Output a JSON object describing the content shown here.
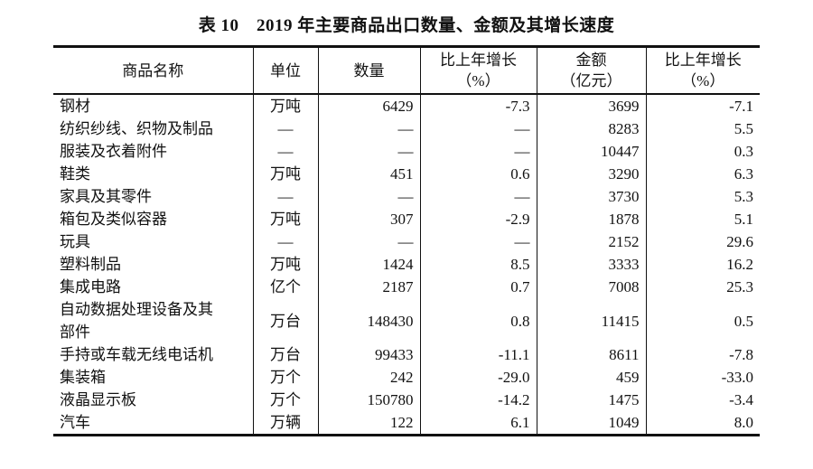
{
  "page": {
    "title": "表 10　2019 年主要商品出口数量、金额及其增长速度"
  },
  "colors": {
    "text": "#111111",
    "border": "#111111",
    "background": "#ffffff"
  },
  "table": {
    "columns": [
      {
        "key": "name",
        "label": "商品名称"
      },
      {
        "key": "unit",
        "label": "单位"
      },
      {
        "key": "quantity",
        "label": "数量"
      },
      {
        "key": "qty_growth",
        "label": "比上年增长\n（%）"
      },
      {
        "key": "value",
        "label": "金额\n（亿元）"
      },
      {
        "key": "value_growth",
        "label": "比上年增长\n（%）"
      }
    ],
    "rows": [
      {
        "name": "钢材",
        "unit": "万吨",
        "quantity": "6429",
        "qty_growth": "-7.3",
        "value": "3699",
        "value_growth": "-7.1"
      },
      {
        "name": "纺织纱线、织物及制品",
        "unit": "—",
        "quantity": "—",
        "qty_growth": "—",
        "value": "8283",
        "value_growth": "5.5"
      },
      {
        "name": "服装及衣着附件",
        "unit": "—",
        "quantity": "—",
        "qty_growth": "—",
        "value": "10447",
        "value_growth": "0.3"
      },
      {
        "name": "鞋类",
        "unit": "万吨",
        "quantity": "451",
        "qty_growth": "0.6",
        "value": "3290",
        "value_growth": "6.3"
      },
      {
        "name": "家具及其零件",
        "unit": "—",
        "quantity": "—",
        "qty_growth": "—",
        "value": "3730",
        "value_growth": "5.3"
      },
      {
        "name": "箱包及类似容器",
        "unit": "万吨",
        "quantity": "307",
        "qty_growth": "-2.9",
        "value": "1878",
        "value_growth": "5.1"
      },
      {
        "name": "玩具",
        "unit": "—",
        "quantity": "—",
        "qty_growth": "—",
        "value": "2152",
        "value_growth": "29.6"
      },
      {
        "name": "塑料制品",
        "unit": "万吨",
        "quantity": "1424",
        "qty_growth": "8.5",
        "value": "3333",
        "value_growth": "16.2"
      },
      {
        "name": "集成电路",
        "unit": "亿个",
        "quantity": "2187",
        "qty_growth": "0.7",
        "value": "7008",
        "value_growth": "25.3"
      },
      {
        "name": "自动数据处理设备及其\n部件",
        "unit": "万台",
        "quantity": "148430",
        "qty_growth": "0.8",
        "value": "11415",
        "value_growth": "0.5"
      },
      {
        "name": "手持或车载无线电话机",
        "unit": "万台",
        "quantity": "99433",
        "qty_growth": "-11.1",
        "value": "8611",
        "value_growth": "-7.8"
      },
      {
        "name": "集装箱",
        "unit": "万个",
        "quantity": "242",
        "qty_growth": "-29.0",
        "value": "459",
        "value_growth": "-33.0"
      },
      {
        "name": "液晶显示板",
        "unit": "万个",
        "quantity": "150780",
        "qty_growth": "-14.2",
        "value": "1475",
        "value_growth": "-3.4"
      },
      {
        "name": "汽车",
        "unit": "万辆",
        "quantity": "122",
        "qty_growth": "6.1",
        "value": "1049",
        "value_growth": "8.0"
      }
    ]
  }
}
